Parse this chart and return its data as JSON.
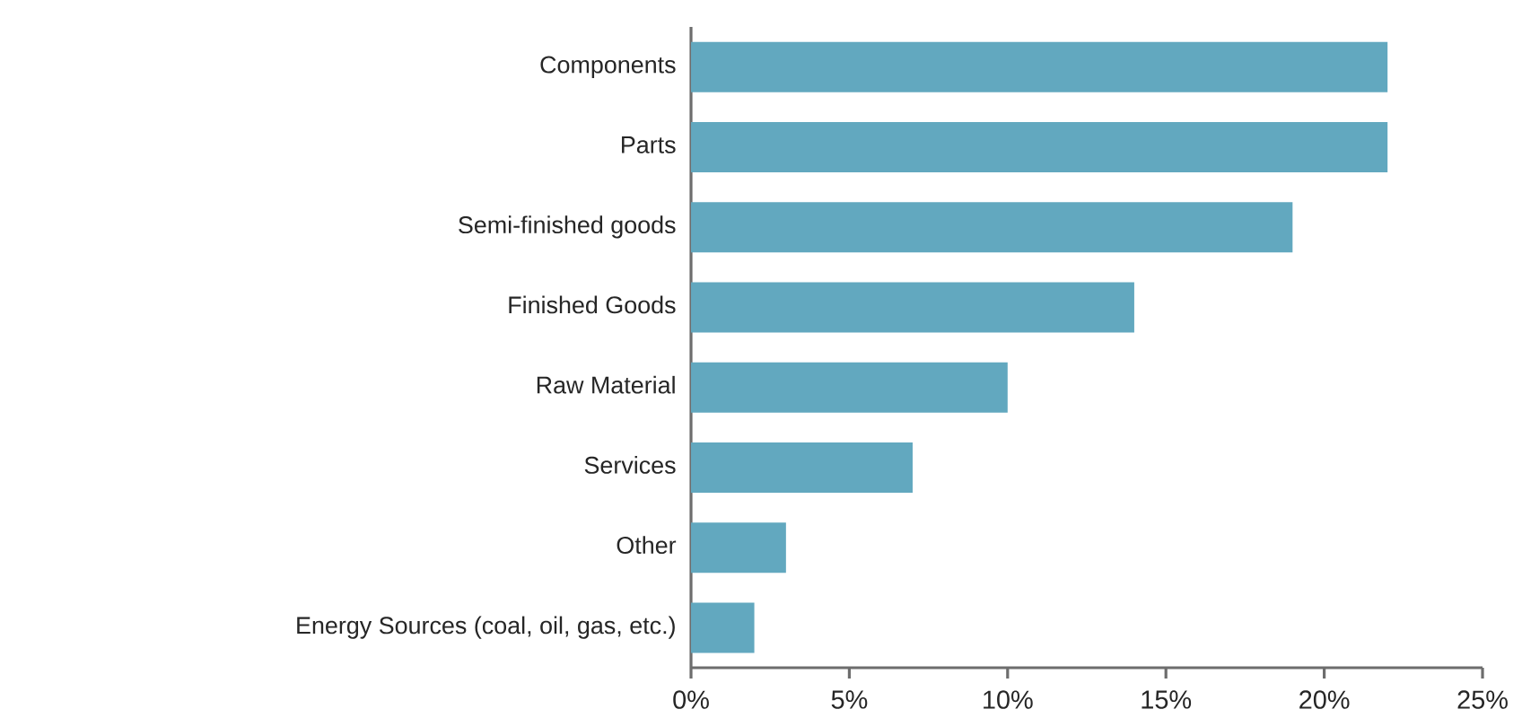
{
  "chart_data": {
    "type": "bar",
    "orientation": "horizontal",
    "categories": [
      "Components",
      "Parts",
      "Semi-finished goods",
      "Finished Goods",
      "Raw Material",
      "Services",
      "Other",
      "Energy Sources (coal, oil, gas, etc.)"
    ],
    "values": [
      22,
      22,
      19,
      14,
      10,
      7,
      3,
      2
    ],
    "color": "#62a8bf",
    "xlim": [
      0,
      25
    ],
    "xticks": [
      {
        "value": 0,
        "label": "0%"
      },
      {
        "value": 5,
        "label": "5%"
      },
      {
        "value": 10,
        "label": "10%"
      },
      {
        "value": 15,
        "label": "15%"
      },
      {
        "value": 20,
        "label": "20%"
      },
      {
        "value": 25,
        "label": "25%"
      }
    ]
  }
}
